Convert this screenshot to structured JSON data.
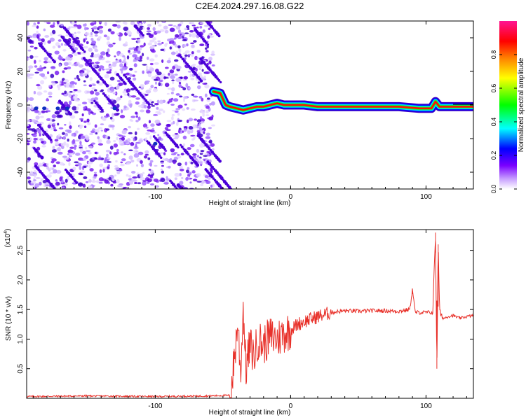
{
  "title": "C2E4.2024.297.16.08.G22",
  "chart_data": [
    {
      "type": "heatmap",
      "name": "spectrogram",
      "xlabel": "Height of straight line (km)",
      "ylabel": "Frequency (Hz)",
      "xlim": [
        -195,
        135
      ],
      "ylim": [
        -50,
        50
      ],
      "xticks": [
        -100,
        0,
        100
      ],
      "yticks": [
        -40,
        -20,
        0,
        20,
        40
      ],
      "noise_region_x": [
        -195,
        -57
      ],
      "signal_track": {
        "x": [
          -57,
          -52,
          -48,
          -45,
          -40,
          -35,
          -30,
          -25,
          -20,
          -15,
          -10,
          -5,
          0,
          10,
          20,
          40,
          60,
          80,
          95,
          104,
          107,
          110,
          115,
          125,
          135
        ],
        "frequency": [
          8,
          7,
          0,
          -1,
          -2,
          -3,
          -2,
          -1,
          -1,
          0,
          1,
          0,
          0,
          0,
          -1,
          -1,
          -1,
          -1,
          -2,
          -2,
          2,
          -1,
          -1,
          -1,
          -1
        ]
      },
      "colorbar": {
        "label": "Normalized spectral amplitude",
        "range": [
          0,
          1
        ],
        "ticks": [
          "0.0",
          "0.2",
          "0.4",
          "0.6",
          "0.8"
        ],
        "colors": [
          "#ffffff",
          "#c8a0ff",
          "#7a00ff",
          "#0000ff",
          "#00ffff",
          "#00ff00",
          "#ffff00",
          "#ff8000",
          "#ff0000",
          "#ff0080"
        ]
      }
    },
    {
      "type": "line",
      "name": "snr",
      "xlabel": "Height of straight line (km)",
      "ylabel": "SNR (10 * v/v)",
      "yscale_label": "(x10",
      "yscale_exp": "4",
      "xlim": [
        -195,
        135
      ],
      "ylim": [
        0,
        2.85
      ],
      "xticks": [
        -100,
        0,
        100
      ],
      "yticks": [
        "0.5",
        "1.0",
        "1.5",
        "2.0",
        "2.5"
      ],
      "color": "#e8312a",
      "series": [
        {
          "x": [
            -195,
            -150,
            -100,
            -60,
            -45,
            -43,
            -41,
            -39,
            -37,
            -35,
            -33,
            -30,
            -27,
            -24,
            -20,
            -15,
            -10,
            -5,
            0,
            5,
            10,
            20,
            30,
            40,
            50,
            60,
            70,
            80,
            88,
            90,
            92,
            95,
            100,
            105,
            107,
            108,
            109,
            110,
            111,
            113,
            116,
            120,
            125,
            130,
            135
          ],
          "y": [
            0.03,
            0.04,
            0.03,
            0.04,
            0.05,
            0.35,
            0.8,
            1.3,
            0.4,
            1.55,
            0.5,
            0.9,
            0.7,
            1.0,
            0.9,
            1.05,
            1.0,
            1.1,
            1.15,
            1.25,
            1.3,
            1.38,
            1.45,
            1.48,
            1.47,
            1.48,
            1.48,
            1.47,
            1.5,
            1.85,
            1.45,
            1.45,
            1.45,
            1.45,
            2.8,
            0.5,
            2.6,
            1.5,
            1.4,
            1.35,
            1.38,
            1.4,
            1.35,
            1.38,
            1.4
          ]
        }
      ]
    }
  ]
}
